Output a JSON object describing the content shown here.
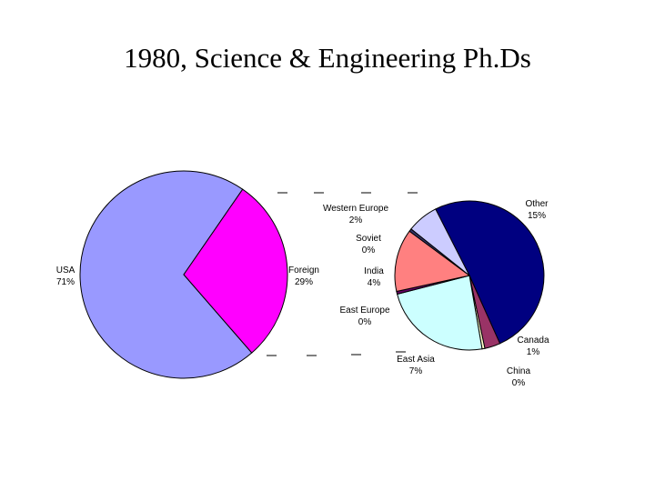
{
  "title": "1980, Science & Engineering Ph.Ds",
  "colors": {
    "usa": "#9999ff",
    "foreign": "#ff00ff",
    "other": "#000080",
    "canada": "#993366",
    "china": "#ffffcc",
    "east_asia": "#ccffff",
    "east_europe": "#660066",
    "india": "#ff8080",
    "soviet": "#333366",
    "western_europe": "#ccccff"
  },
  "chart_data": [
    {
      "type": "pie",
      "title": "",
      "slices": [
        {
          "label": "USA",
          "value": 71,
          "value_label": "71%",
          "color": "#9999ff"
        },
        {
          "label": "Foreign",
          "value": 29,
          "value_label": "29%",
          "color": "#ff00ff"
        }
      ]
    },
    {
      "type": "pie",
      "title": "",
      "slices": [
        {
          "label": "Other",
          "value": 15,
          "value_label": "15%",
          "color": "#000080"
        },
        {
          "label": "Canada",
          "value": 1,
          "value_label": "1%",
          "color": "#993366"
        },
        {
          "label": "China",
          "value": 0,
          "value_label": "0%",
          "color": "#ffffcc"
        },
        {
          "label": "East Asia",
          "value": 7,
          "value_label": "7%",
          "color": "#ccffff"
        },
        {
          "label": "East Europe",
          "value": 0,
          "value_label": "0%",
          "color": "#660066"
        },
        {
          "label": "India",
          "value": 4,
          "value_label": "4%",
          "color": "#ff8080"
        },
        {
          "label": "Soviet",
          "value": 0,
          "value_label": "0%",
          "color": "#333366"
        },
        {
          "label": "Western Europe",
          "value": 2,
          "value_label": "2%",
          "color": "#ccccff"
        }
      ]
    }
  ]
}
